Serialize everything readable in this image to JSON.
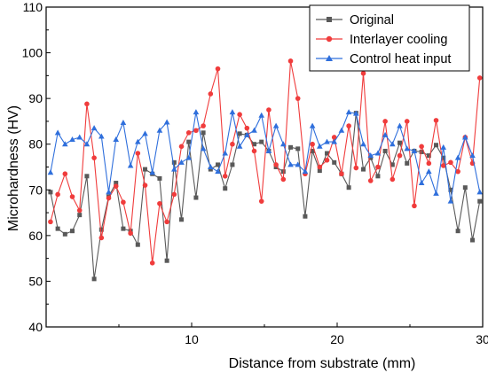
{
  "chart_data": {
    "type": "line",
    "title": "",
    "xlabel": "Distance from substrate (mm)",
    "ylabel": "Microhardness (HV)",
    "xlim": [
      0,
      30
    ],
    "ylim": [
      40,
      110
    ],
    "xticks": [
      "10",
      "20",
      "30"
    ],
    "xtick_values": [
      10,
      20,
      30
    ],
    "yticks": [
      "40",
      "50",
      "60",
      "70",
      "80",
      "90",
      "100",
      "110"
    ],
    "ytick_values": [
      40,
      50,
      60,
      70,
      80,
      90,
      100,
      110
    ],
    "grid": false,
    "legend_position": "top-right",
    "series": [
      {
        "name": "Original",
        "color": "#595959",
        "marker": "square",
        "x": [
          0.3,
          0.8,
          1.3,
          1.8,
          2.3,
          2.8,
          3.3,
          3.8,
          4.3,
          4.8,
          5.3,
          5.8,
          6.3,
          6.8,
          7.3,
          7.8,
          8.3,
          8.8,
          9.3,
          9.8,
          10.3,
          10.8,
          11.3,
          11.8,
          12.3,
          12.8,
          13.3,
          13.8,
          14.3,
          14.8,
          15.3,
          15.8,
          16.3,
          16.8,
          17.3,
          17.8,
          18.3,
          18.8,
          19.3,
          19.8,
          20.3,
          20.8,
          21.3,
          21.8,
          22.3,
          22.8,
          23.3,
          23.8,
          24.3,
          24.8,
          25.3,
          25.8,
          26.3,
          26.8,
          27.3,
          27.8,
          28.3,
          28.8,
          29.3,
          29.8
        ],
        "y": [
          69.5,
          61.5,
          60.3,
          61.0,
          64.5,
          73.0,
          50.5,
          61.3,
          68.5,
          71.5,
          61.5,
          61.0,
          58.0,
          74.5,
          73.5,
          72.5,
          54.5,
          76.0,
          63.5,
          80.5,
          68.3,
          82.5,
          74.5,
          75.5,
          70.3,
          75.5,
          82.3,
          82.0,
          80.0,
          80.5,
          78.5,
          75.0,
          74.0,
          79.3,
          79.0,
          64.2,
          78.5,
          74.2,
          78.0,
          76.0,
          73.5,
          70.5,
          86.8,
          74.5,
          77.0,
          73.0,
          78.5,
          75.5,
          80.3,
          75.8,
          78.5,
          78.3,
          77.5,
          79.8,
          77.0,
          70.0,
          61.0,
          70.5,
          59.0,
          67.5
        ]
      },
      {
        "name": "Interlayer cooling",
        "color": "#f03c3c",
        "marker": "circle",
        "x": [
          0.3,
          0.8,
          1.3,
          1.8,
          2.3,
          2.8,
          3.3,
          3.8,
          4.3,
          4.8,
          5.3,
          5.8,
          6.3,
          6.8,
          7.3,
          7.8,
          8.3,
          8.8,
          9.3,
          9.8,
          10.3,
          10.8,
          11.3,
          11.8,
          12.3,
          12.8,
          13.3,
          13.8,
          14.3,
          14.8,
          15.3,
          15.8,
          16.3,
          16.8,
          17.3,
          17.8,
          18.3,
          18.8,
          19.3,
          19.8,
          20.3,
          20.8,
          21.3,
          21.8,
          22.3,
          22.8,
          23.3,
          23.8,
          24.3,
          24.8,
          25.3,
          25.8,
          26.3,
          26.8,
          27.3,
          27.8,
          28.3,
          28.8,
          29.3,
          29.8
        ],
        "y": [
          63.0,
          69.0,
          73.5,
          68.5,
          65.5,
          88.8,
          77.0,
          59.5,
          68.2,
          70.8,
          67.3,
          60.5,
          78.0,
          71.0,
          54.0,
          67.0,
          63.0,
          69.0,
          79.5,
          82.5,
          83.0,
          84.0,
          91.0,
          96.5,
          73.0,
          80.0,
          86.5,
          83.5,
          78.5,
          67.5,
          87.5,
          75.5,
          72.3,
          98.2,
          90.0,
          73.5,
          80.0,
          75.0,
          76.5,
          81.5,
          73.5,
          84.0,
          74.8,
          95.5,
          72.0,
          75.0,
          85.0,
          72.3,
          77.5,
          85.0,
          66.5,
          79.5,
          75.8,
          85.2,
          75.3,
          76.0,
          74.0,
          81.5,
          75.8,
          94.5
        ]
      },
      {
        "name": "Control heat input",
        "color": "#2f6fdc",
        "marker": "triangle",
        "x": [
          0.3,
          0.8,
          1.3,
          1.8,
          2.3,
          2.8,
          3.3,
          3.8,
          4.3,
          4.8,
          5.3,
          5.8,
          6.3,
          6.8,
          7.3,
          7.8,
          8.3,
          8.8,
          9.3,
          9.8,
          10.3,
          10.8,
          11.3,
          11.8,
          12.3,
          12.8,
          13.3,
          13.8,
          14.3,
          14.8,
          15.3,
          15.8,
          16.3,
          16.8,
          17.3,
          17.8,
          18.3,
          18.8,
          19.3,
          19.8,
          20.3,
          20.8,
          21.3,
          21.8,
          22.3,
          22.8,
          23.3,
          23.8,
          24.3,
          24.8,
          25.3,
          25.8,
          26.3,
          26.8,
          27.3,
          27.8,
          28.3,
          28.8,
          29.3,
          29.8
        ],
        "y": [
          73.8,
          82.5,
          80.0,
          81.0,
          81.5,
          80.0,
          83.5,
          81.7,
          69.5,
          81.0,
          84.7,
          75.3,
          80.5,
          82.3,
          73.8,
          83.0,
          84.8,
          74.5,
          76.0,
          77.0,
          87.0,
          79.0,
          75.0,
          74.0,
          78.0,
          87.0,
          79.5,
          82.0,
          83.0,
          86.3,
          78.5,
          84.0,
          80.0,
          75.5,
          75.5,
          74.0,
          84.0,
          79.5,
          80.5,
          80.5,
          83.0,
          87.0,
          86.7,
          80.0,
          77.5,
          78.0,
          82.0,
          80.0,
          84.0,
          79.0,
          78.5,
          71.5,
          74.0,
          69.2,
          79.3,
          67.5,
          77.0,
          81.5,
          77.5,
          69.5
        ]
      }
    ]
  }
}
